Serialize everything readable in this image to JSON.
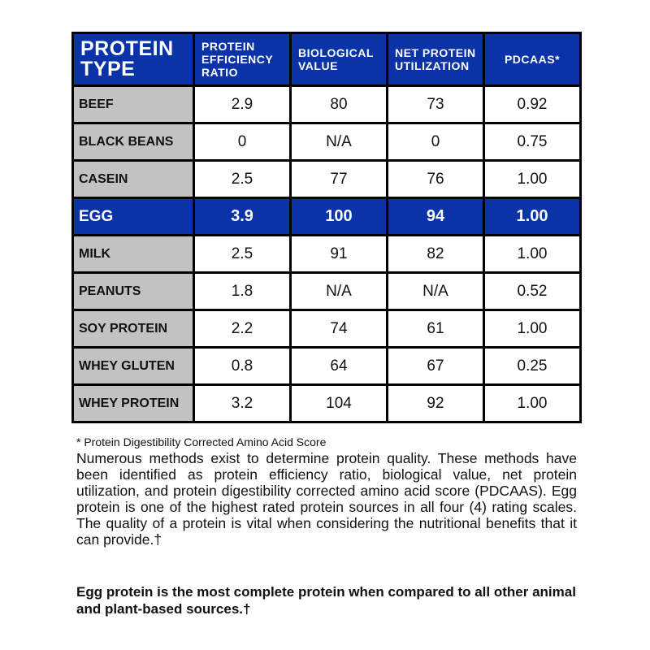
{
  "headers": [
    "PROTEIN TYPE",
    "PROTEIN EFFICIENCY RATIO",
    "BIOLOGICAL VALUE",
    "NET PROTEIN UTILIZATION",
    "PDCAAS*"
  ],
  "rows": [
    [
      "BEEF",
      "2.9",
      "80",
      "73",
      "0.92"
    ],
    [
      "BLACK BEANS",
      "0",
      "N/A",
      "0",
      "0.75"
    ],
    [
      "CASEIN",
      "2.5",
      "77",
      "76",
      "1.00"
    ],
    [
      "EGG",
      "3.9",
      "100",
      "94",
      "1.00"
    ],
    [
      "MILK",
      "2.5",
      "91",
      "82",
      "1.00"
    ],
    [
      "PEANUTS",
      "1.8",
      "N/A",
      "N/A",
      "0.52"
    ],
    [
      "SOY PROTEIN",
      "2.2",
      "74",
      "61",
      "1.00"
    ],
    [
      "WHEY GLUTEN",
      "0.8",
      "64",
      "67",
      "0.25"
    ],
    [
      "WHEY PROTEIN",
      "3.2",
      "104",
      "92",
      "1.00"
    ]
  ],
  "highlight_row": "EGG",
  "colors": {
    "header_blue": "#0a33a8",
    "label_gray": "#c2c2c2"
  },
  "footnote": "* Protein Digestibility Corrected Amino Acid Score",
  "paragraph": "Numerous methods exist to determine protein quality. These methods have been identified as protein efficiency ratio, biological value, net protein utilization, and protein digestibility corrected amino acid score (PDCAAS).  Egg protein is one of the highest rated protein sources in all four (4) rating scales.  The quality of a protein is vital when considering the nutritional benefits that it can provide.†",
  "conclusion": "Egg protein is the most complete protein when compared to all other animal and plant-based sources.†"
}
